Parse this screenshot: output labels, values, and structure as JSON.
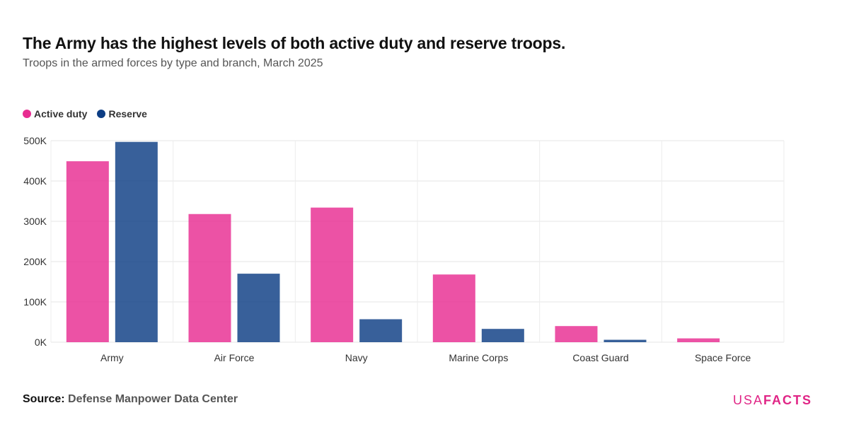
{
  "header": {
    "title": "The Army has the highest levels of both active duty and reserve troops.",
    "subtitle": "Troops in the armed forces by type and branch, March 2025"
  },
  "legend": {
    "items": [
      {
        "label": "Active duty",
        "color": "#e82c91"
      },
      {
        "label": "Reserve",
        "color": "#0c3d84"
      }
    ]
  },
  "footer": {
    "source_label": "Source:",
    "source_text": "Defense Manpower Data Center",
    "logo_usa": "USA",
    "logo_facts": "FACTS"
  },
  "chart_data": {
    "type": "bar",
    "title": "The Army has the highest levels of both active duty and reserve troops.",
    "subtitle": "Troops in the armed forces by type and branch, March 2025",
    "categories": [
      "Army",
      "Air Force",
      "Navy",
      "Marine Corps",
      "Coast Guard",
      "Space Force"
    ],
    "series": [
      {
        "name": "Active duty",
        "color": "#e82c91",
        "values": [
          449000,
          318000,
          334000,
          168000,
          40000,
          9500
        ]
      },
      {
        "name": "Reserve",
        "color": "#0c3d84",
        "values": [
          497000,
          170000,
          57000,
          33000,
          6000,
          0
        ]
      }
    ],
    "ylim": [
      0,
      500000
    ],
    "yticks": [
      0,
      100000,
      200000,
      300000,
      400000,
      500000
    ],
    "ytick_labels": [
      "0K",
      "100K",
      "200K",
      "300K",
      "400K",
      "500K"
    ],
    "xlabel": "",
    "ylabel": "",
    "grid": true,
    "legend_position": "top-left"
  }
}
